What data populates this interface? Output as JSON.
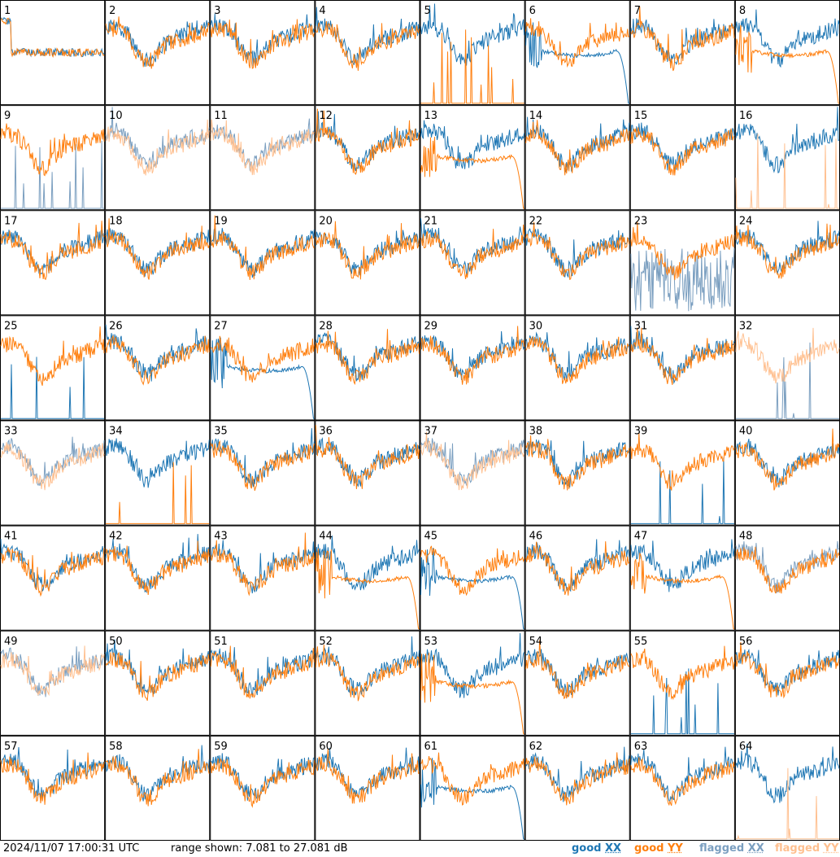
{
  "footer": {
    "timestamp": "2024/11/07 17:00:31 UTC",
    "range_text": "range shown: 7.081 to 27.081 dB"
  },
  "legend": {
    "good_xx": {
      "status": "good",
      "pol": "XX",
      "color": "#1f77b4"
    },
    "good_yy": {
      "status": "good",
      "pol": "YY",
      "color": "#ff7f0e"
    },
    "flagged_xx": {
      "status": "flagged",
      "pol": "XX",
      "color": "#7b9fc0"
    },
    "flagged_yy": {
      "status": "flagged",
      "pol": "YY",
      "color": "#ffc090"
    }
  },
  "chart_data": {
    "type": "line",
    "layout": "8x8 small multiples",
    "ylim": [
      7.081,
      27.081
    ],
    "yunit": "dB",
    "panels": [
      {
        "label": "1",
        "xx": "degraded",
        "yy": "degraded"
      },
      {
        "label": "2",
        "xx": "good",
        "yy": "good"
      },
      {
        "label": "3",
        "xx": "good",
        "yy": "good"
      },
      {
        "label": "4",
        "xx": "good",
        "yy": "good"
      },
      {
        "label": "5",
        "xx": "good",
        "yy": "sparse"
      },
      {
        "label": "6",
        "xx": "drop",
        "yy": "good"
      },
      {
        "label": "7",
        "xx": "good",
        "yy": "good"
      },
      {
        "label": "8",
        "xx": "good",
        "yy": "drop"
      },
      {
        "label": "9",
        "xx": "flag-sparse",
        "yy": "good"
      },
      {
        "label": "10",
        "xx": "flagged",
        "yy": "flagged"
      },
      {
        "label": "11",
        "xx": "flagged",
        "yy": "flagged"
      },
      {
        "label": "12",
        "xx": "good",
        "yy": "good"
      },
      {
        "label": "13",
        "xx": "good",
        "yy": "drop"
      },
      {
        "label": "14",
        "xx": "good",
        "yy": "good"
      },
      {
        "label": "15",
        "xx": "good",
        "yy": "good"
      },
      {
        "label": "16",
        "xx": "good",
        "yy": "flag-sparse"
      },
      {
        "label": "17",
        "xx": "good",
        "yy": "good"
      },
      {
        "label": "18",
        "xx": "good",
        "yy": "good"
      },
      {
        "label": "19",
        "xx": "good",
        "yy": "good"
      },
      {
        "label": "20",
        "xx": "good",
        "yy": "good"
      },
      {
        "label": "21",
        "xx": "good",
        "yy": "good"
      },
      {
        "label": "22",
        "xx": "good",
        "yy": "good"
      },
      {
        "label": "23",
        "xx": "flag-noisy",
        "yy": "good"
      },
      {
        "label": "24",
        "xx": "good",
        "yy": "good"
      },
      {
        "label": "25",
        "xx": "sparse",
        "yy": "good"
      },
      {
        "label": "26",
        "xx": "good",
        "yy": "good"
      },
      {
        "label": "27",
        "xx": "drop",
        "yy": "good"
      },
      {
        "label": "28",
        "xx": "good",
        "yy": "good"
      },
      {
        "label": "29",
        "xx": "good",
        "yy": "good"
      },
      {
        "label": "30",
        "xx": "good",
        "yy": "good"
      },
      {
        "label": "31",
        "xx": "good",
        "yy": "good"
      },
      {
        "label": "32",
        "xx": "flag-sparse",
        "yy": "flagged"
      },
      {
        "label": "33",
        "xx": "flagged",
        "yy": "flagged"
      },
      {
        "label": "34",
        "xx": "good",
        "yy": "sparse"
      },
      {
        "label": "35",
        "xx": "good",
        "yy": "good"
      },
      {
        "label": "36",
        "xx": "good",
        "yy": "good"
      },
      {
        "label": "37",
        "xx": "flagged",
        "yy": "flagged"
      },
      {
        "label": "38",
        "xx": "good",
        "yy": "good"
      },
      {
        "label": "39",
        "xx": "sparse",
        "yy": "good"
      },
      {
        "label": "40",
        "xx": "good",
        "yy": "good"
      },
      {
        "label": "41",
        "xx": "good",
        "yy": "good"
      },
      {
        "label": "42",
        "xx": "good",
        "yy": "good"
      },
      {
        "label": "43",
        "xx": "good",
        "yy": "good"
      },
      {
        "label": "44",
        "xx": "good",
        "yy": "drop"
      },
      {
        "label": "45",
        "xx": "drop",
        "yy": "good"
      },
      {
        "label": "46",
        "xx": "good",
        "yy": "good"
      },
      {
        "label": "47",
        "xx": "good",
        "yy": "drop"
      },
      {
        "label": "48",
        "xx": "flagged",
        "yy": "good"
      },
      {
        "label": "49",
        "xx": "flagged",
        "yy": "flagged"
      },
      {
        "label": "50",
        "xx": "good",
        "yy": "good"
      },
      {
        "label": "51",
        "xx": "good",
        "yy": "good"
      },
      {
        "label": "52",
        "xx": "good",
        "yy": "good"
      },
      {
        "label": "53",
        "xx": "good",
        "yy": "drop"
      },
      {
        "label": "54",
        "xx": "good",
        "yy": "good"
      },
      {
        "label": "55",
        "xx": "sparse",
        "yy": "good"
      },
      {
        "label": "56",
        "xx": "good",
        "yy": "good"
      },
      {
        "label": "57",
        "xx": "good",
        "yy": "good"
      },
      {
        "label": "58",
        "xx": "good",
        "yy": "good"
      },
      {
        "label": "59",
        "xx": "good",
        "yy": "good"
      },
      {
        "label": "60",
        "xx": "good",
        "yy": "good"
      },
      {
        "label": "61",
        "xx": "drop",
        "yy": "good"
      },
      {
        "label": "62",
        "xx": "good",
        "yy": "good"
      },
      {
        "label": "63",
        "xx": "good",
        "yy": "good"
      },
      {
        "label": "64",
        "xx": "good",
        "yy": "flag-sparse"
      }
    ]
  }
}
